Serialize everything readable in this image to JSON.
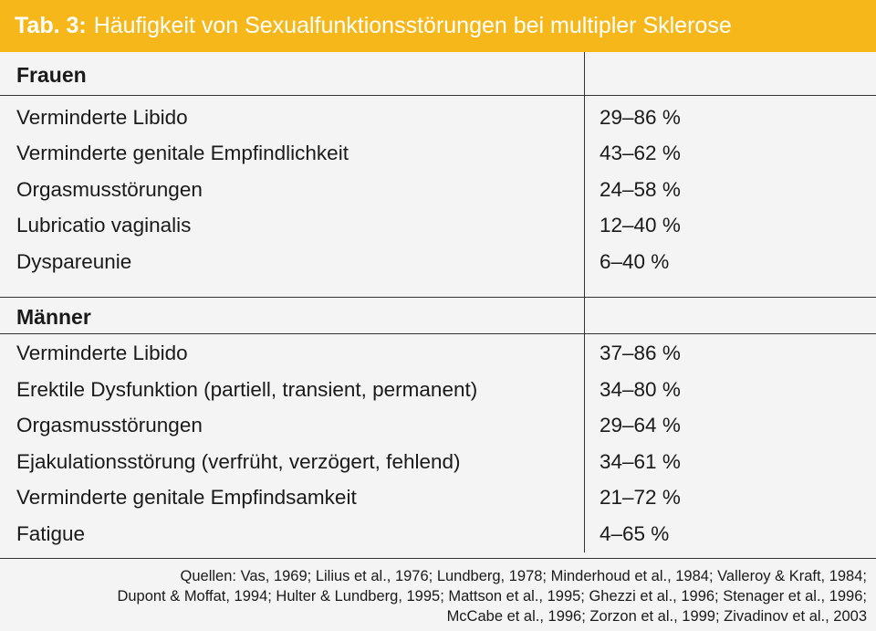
{
  "title": {
    "label": "Tab. 3:",
    "text": "Häufigkeit von Sexualfunktionsstörungen bei multipler Sklerose"
  },
  "sections": [
    {
      "header": "Frauen",
      "rows": [
        {
          "item": "Verminderte Libido",
          "value": "29–86 %"
        },
        {
          "item": "Verminderte genitale Empfindlichkeit",
          "value": "43–62 %"
        },
        {
          "item": "Orgasmusstörungen",
          "value": "24–58 %"
        },
        {
          "item": "Lubricatio vaginalis",
          "value": "12–40 %"
        },
        {
          "item": "Dyspareunie",
          "value": "6–40 %"
        }
      ]
    },
    {
      "header": "Männer",
      "rows": [
        {
          "item": "Verminderte Libido",
          "value": "37–86 %"
        },
        {
          "item": "Erektile Dysfunktion (partiell, transient, permanent)",
          "value": "34–80 %"
        },
        {
          "item": "Orgasmusstörungen",
          "value": "29–64 %"
        },
        {
          "item": "Ejakulationsstörung (verfrüht, verzögert, fehlend)",
          "value": "34–61 %"
        },
        {
          "item": "Verminderte genitale Empfindsamkeit",
          "value": "21–72 %"
        },
        {
          "item": "Fatigue",
          "value": "4–65 %"
        }
      ]
    }
  ],
  "sources": [
    "Quellen: Vas, 1969; Lilius et al., 1976; Lundberg, 1978; Minderhoud et al., 1984; Valleroy & Kraft, 1984;",
    "Dupont & Moffat, 1994; Hulter & Lundberg, 1995; Mattson et al., 1995; Ghezzi et al., 1996;  Stenager et al., 1996;",
    "McCabe et al., 1996; Zorzon et al., 1999; Zivadinov et al., 2003"
  ],
  "colors": {
    "title_bar": "#f6b71b",
    "title_text": "#ffffff",
    "background": "#f4f4f4"
  }
}
